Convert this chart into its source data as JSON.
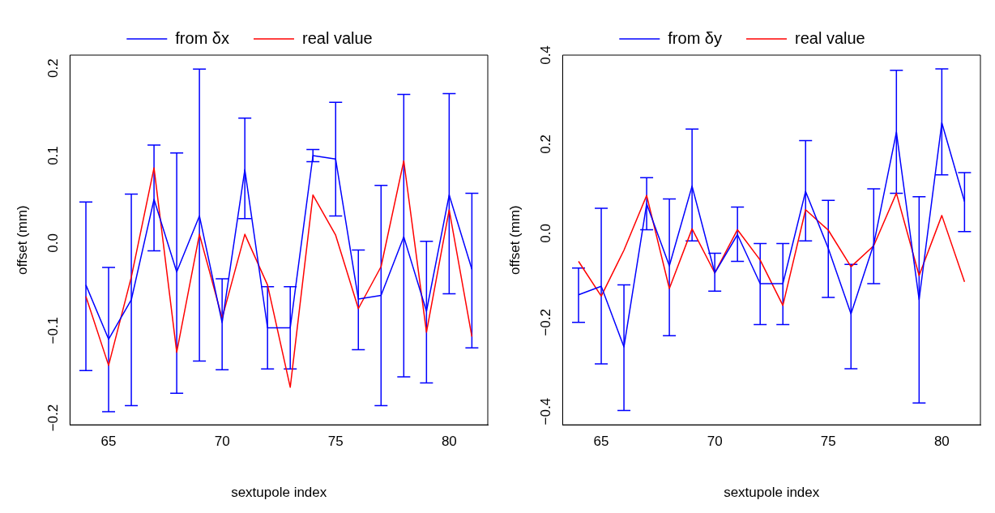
{
  "chart_data": [
    {
      "type": "line",
      "xlabel": "sextupole index",
      "ylabel": "offset (mm)",
      "x": [
        64,
        65,
        66,
        67,
        68,
        69,
        70,
        71,
        72,
        73,
        74,
        75,
        76,
        77,
        78,
        79,
        80,
        81
      ],
      "xlim": [
        63.3,
        81.7
      ],
      "xticks": [
        65,
        70,
        75,
        80
      ],
      "ylim": [
        -0.208,
        0.215
      ],
      "yticks": [
        -0.2,
        -0.1,
        {
          "value": 0,
          "label": "0.0"
        },
        0.1,
        0.2
      ],
      "legend": "top",
      "marker": "none",
      "grid": false,
      "series": [
        {
          "name": "from δx",
          "color": "#0000ff",
          "values": [
            -0.048,
            -0.11,
            -0.065,
            0.05,
            -0.033,
            0.031,
            -0.091,
            0.084,
            -0.097,
            -0.097,
            0.1,
            0.096,
            -0.064,
            -0.06,
            0.007,
            -0.078,
            0.055,
            -0.03
          ],
          "errors": [
            [
              -0.146,
              0.047
            ],
            [
              -0.193,
              -0.028
            ],
            [
              -0.186,
              0.056
            ],
            [
              -0.009,
              0.112
            ],
            [
              -0.172,
              0.103
            ],
            [
              -0.135,
              0.199
            ],
            [
              -0.145,
              -0.041
            ],
            [
              0.028,
              0.143
            ],
            [
              -0.144,
              -0.05
            ],
            [
              -0.144,
              -0.05
            ],
            [
              0.093,
              0.107
            ],
            [
              0.031,
              0.161
            ],
            [
              -0.122,
              -0.008
            ],
            [
              -0.186,
              0.066
            ],
            [
              -0.153,
              0.17
            ],
            [
              -0.16,
              0.002
            ],
            [
              -0.058,
              0.171
            ],
            [
              -0.12,
              0.057
            ]
          ]
        },
        {
          "name": "real value",
          "color": "#ff0000",
          "values": [
            -0.061,
            -0.14,
            -0.039,
            0.086,
            -0.125,
            0.01,
            -0.086,
            0.01,
            -0.048,
            -0.165,
            0.055,
            0.009,
            -0.075,
            -0.027,
            0.094,
            -0.102,
            0.038,
            -0.107
          ]
        }
      ]
    },
    {
      "type": "line",
      "xlabel": "sextupole index",
      "ylabel": "offset (mm)",
      "x": [
        64,
        65,
        66,
        67,
        68,
        69,
        70,
        71,
        72,
        73,
        74,
        75,
        76,
        77,
        78,
        79,
        80,
        81
      ],
      "xlim": [
        63.3,
        81.7
      ],
      "xticks": [
        65,
        70,
        75,
        80
      ],
      "ylim": [
        -0.43,
        0.4
      ],
      "yticks": [
        -0.4,
        -0.2,
        {
          "value": 0,
          "label": "0.0"
        },
        0.2,
        0.4
      ],
      "legend": "top",
      "marker": "none",
      "grid": false,
      "series": [
        {
          "name": "from δy",
          "color": "#0000ff",
          "values": [
            -0.138,
            -0.119,
            -0.255,
            0.066,
            -0.073,
            0.106,
            -0.089,
            -0.003,
            -0.113,
            -0.113,
            0.094,
            -0.034,
            -0.181,
            -0.025,
            0.227,
            -0.149,
            0.248,
            0.071
          ],
          "errors": [
            [
              -0.2,
              -0.078
            ],
            [
              -0.293,
              0.056
            ],
            [
              -0.398,
              -0.116
            ],
            [
              0.008,
              0.125
            ],
            [
              -0.23,
              0.077
            ],
            [
              -0.017,
              0.234
            ],
            [
              -0.13,
              -0.045
            ],
            [
              -0.063,
              0.059
            ],
            [
              -0.205,
              -0.023
            ],
            [
              -0.205,
              -0.023
            ],
            [
              -0.017,
              0.208
            ],
            [
              -0.144,
              0.074
            ],
            [
              -0.304,
              -0.07
            ],
            [
              -0.113,
              0.1
            ],
            [
              0.09,
              0.366
            ],
            [
              -0.381,
              0.082
            ],
            [
              0.131,
              0.369
            ],
            [
              0.004,
              0.136
            ]
          ]
        },
        {
          "name": "real value",
          "color": "#ff0000",
          "values": [
            -0.063,
            -0.141,
            -0.038,
            0.085,
            -0.124,
            0.01,
            -0.089,
            0.008,
            -0.06,
            -0.162,
            0.053,
            0.007,
            -0.075,
            -0.028,
            0.09,
            -0.095,
            0.04,
            -0.109
          ]
        }
      ]
    }
  ]
}
